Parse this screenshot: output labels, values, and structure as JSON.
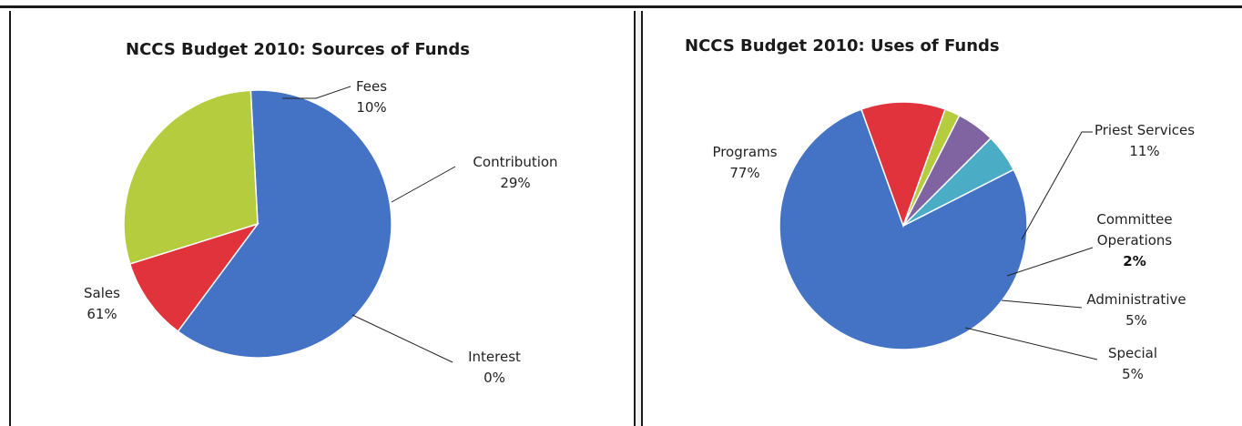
{
  "chart_data": [
    {
      "type": "pie",
      "title": "NCCS Budget 2010:  Sources of Funds",
      "slices": [
        {
          "name": "Sales",
          "value": 61,
          "label": "61%",
          "color": "#4472C4"
        },
        {
          "name": "Fees",
          "value": 10,
          "label": "10%",
          "color": "#E0333C"
        },
        {
          "name": "Contribution",
          "value": 29,
          "label": "29%",
          "color": "#B5CC3F"
        },
        {
          "name": "Interest",
          "value": 0,
          "label": "0%",
          "color": "#8064A2"
        }
      ]
    },
    {
      "type": "pie",
      "title": "NCCS Budget 2010:  Uses of Funds",
      "slices": [
        {
          "name": "Programs",
          "value": 77,
          "label": "77%",
          "color": "#4472C4"
        },
        {
          "name": "Priest Services",
          "value": 11,
          "label": "11%",
          "color": "#E0333C"
        },
        {
          "name": "Committee Operations",
          "name_lines": [
            "Committee",
            "Operations"
          ],
          "value": 2,
          "label": "2%",
          "color": "#B5CC3F"
        },
        {
          "name": "Administrative",
          "value": 5,
          "label": "5%",
          "color": "#8064A2"
        },
        {
          "name": "Special",
          "value": 5,
          "label": "5%",
          "color": "#4BACC6"
        }
      ]
    }
  ]
}
